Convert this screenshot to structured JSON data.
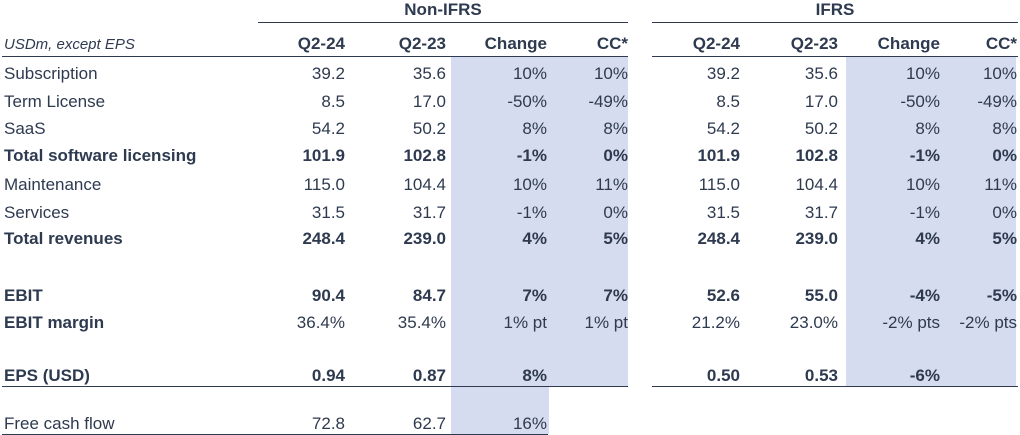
{
  "header": {
    "unit_note": "USDm, except EPS",
    "groups": [
      "Non-IFRS",
      "IFRS"
    ],
    "columns": [
      "Q2-24",
      "Q2-23",
      "Change",
      "CC*",
      "Q2-24",
      "Q2-23",
      "Change",
      "CC*"
    ]
  },
  "rows": [
    {
      "label": "Subscription",
      "bold": false,
      "cells": [
        "39.2",
        "35.6",
        "10%",
        "10%",
        "39.2",
        "35.6",
        "10%",
        "10%"
      ]
    },
    {
      "label": "Term License",
      "bold": false,
      "cells": [
        "8.5",
        "17.0",
        "-50%",
        "-49%",
        "8.5",
        "17.0",
        "-50%",
        "-49%"
      ]
    },
    {
      "label": "SaaS",
      "bold": false,
      "cells": [
        "54.2",
        "50.2",
        "8%",
        "8%",
        "54.2",
        "50.2",
        "8%",
        "8%"
      ]
    },
    {
      "label": "Total software licensing",
      "bold": true,
      "cells": [
        "101.9",
        "102.8",
        "-1%",
        "0%",
        "101.9",
        "102.8",
        "-1%",
        "0%"
      ]
    },
    {
      "label": "Maintenance",
      "bold": false,
      "cells": [
        "115.0",
        "104.4",
        "10%",
        "11%",
        "115.0",
        "104.4",
        "10%",
        "11%"
      ]
    },
    {
      "label": "Services",
      "bold": false,
      "cells": [
        "31.5",
        "31.7",
        "-1%",
        "0%",
        "31.5",
        "31.7",
        "-1%",
        "0%"
      ]
    },
    {
      "label": "Total revenues",
      "bold": true,
      "cells": [
        "248.4",
        "239.0",
        "4%",
        "5%",
        "248.4",
        "239.0",
        "4%",
        "5%"
      ]
    },
    {
      "label": "EBIT",
      "bold": true,
      "cells": [
        "90.4",
        "84.7",
        "7%",
        "7%",
        "52.6",
        "55.0",
        "-4%",
        "-5%"
      ]
    },
    {
      "label": "EBIT margin",
      "bold": true,
      "cells": [
        "36.4%",
        "35.4%",
        "1% pt",
        "1% pt",
        "21.2%",
        "23.0%",
        "-2% pts",
        "-2% pts"
      ]
    },
    {
      "label": "EPS (USD)",
      "bold": true,
      "cells": [
        "0.94",
        "0.87",
        "8%",
        "",
        "0.50",
        "0.53",
        "-6%",
        ""
      ]
    },
    {
      "label": "Free cash flow",
      "bold": false,
      "cells": [
        "72.8",
        "62.7",
        "16%",
        "",
        "",
        "",
        "",
        ""
      ]
    }
  ],
  "colors": {
    "text": "#2e3a4f",
    "shade": "#d6dcef"
  }
}
